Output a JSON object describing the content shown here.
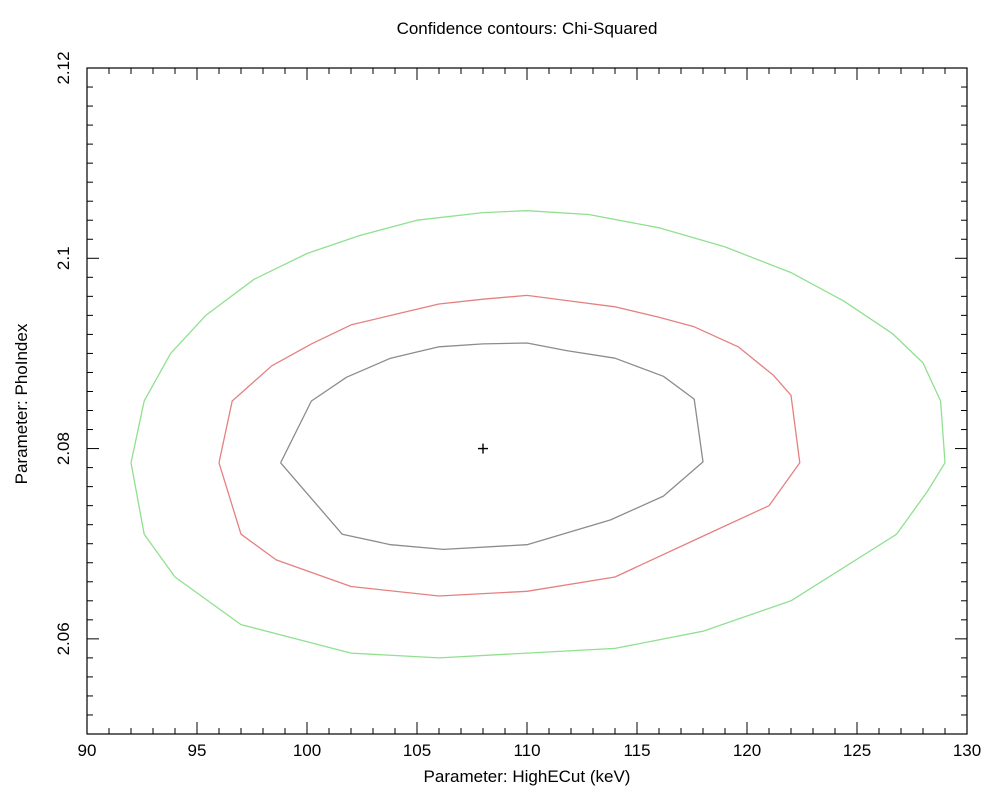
{
  "chart_data": {
    "type": "line",
    "title": "Confidence contours: Chi-Squared",
    "xlabel": "Parameter: HighECut (keV)",
    "ylabel": "Parameter: PhoIndex",
    "xlim": [
      90,
      130
    ],
    "ylim": [
      2.05,
      2.12
    ],
    "x_ticks": [
      90,
      95,
      100,
      105,
      110,
      115,
      120,
      125,
      130
    ],
    "x_tick_labels": [
      "90",
      "95",
      "100",
      "105",
      "110",
      "115",
      "120",
      "125",
      "130"
    ],
    "y_ticks": [
      2.06,
      2.08,
      2.1,
      2.12
    ],
    "y_tick_labels": [
      "2.06",
      "2.08",
      "2.1",
      "2.12"
    ],
    "x_minor_step": 1,
    "y_minor_step": 0.002,
    "grid": false,
    "legend": false,
    "best_fit": {
      "x": 108,
      "y": 2.08
    },
    "series": [
      {
        "color": "#8c8c8c",
        "points": [
          [
            98.8,
            2.0785
          ],
          [
            100.2,
            2.085
          ],
          [
            101.8,
            2.0875
          ],
          [
            103.8,
            2.0895
          ],
          [
            106.0,
            2.0907
          ],
          [
            108.0,
            2.091
          ],
          [
            110.0,
            2.0911
          ],
          [
            111.8,
            2.0903
          ],
          [
            114.0,
            2.0895
          ],
          [
            116.2,
            2.0876
          ],
          [
            117.6,
            2.0852
          ],
          [
            118.0,
            2.0786
          ],
          [
            116.2,
            2.075
          ],
          [
            113.8,
            2.0725
          ],
          [
            110.0,
            2.0699
          ],
          [
            106.2,
            2.0694
          ],
          [
            103.8,
            2.0699
          ],
          [
            101.6,
            2.071
          ],
          [
            98.8,
            2.0785
          ]
        ]
      },
      {
        "color": "#e58080",
        "points": [
          [
            96.0,
            2.0785
          ],
          [
            96.6,
            2.085
          ],
          [
            98.4,
            2.0887
          ],
          [
            100.2,
            2.091
          ],
          [
            102.0,
            2.093
          ],
          [
            104.0,
            2.0941
          ],
          [
            106.0,
            2.0952
          ],
          [
            108.0,
            2.0957
          ],
          [
            110.0,
            2.0961
          ],
          [
            112.0,
            2.0955
          ],
          [
            114.0,
            2.0949
          ],
          [
            116.0,
            2.0938
          ],
          [
            117.6,
            2.0928
          ],
          [
            119.6,
            2.0907
          ],
          [
            121.2,
            2.0877
          ],
          [
            122.0,
            2.0856
          ],
          [
            122.4,
            2.0785
          ],
          [
            121.0,
            2.074
          ],
          [
            118.0,
            2.0708
          ],
          [
            114.0,
            2.0665
          ],
          [
            110.0,
            2.065
          ],
          [
            106.0,
            2.0645
          ],
          [
            102.0,
            2.0655
          ],
          [
            98.6,
            2.0683
          ],
          [
            97.0,
            2.071
          ],
          [
            96.0,
            2.0785
          ]
        ]
      },
      {
        "color": "#90e090",
        "points": [
          [
            92.0,
            2.0785
          ],
          [
            92.6,
            2.085
          ],
          [
            93.8,
            2.09
          ],
          [
            95.4,
            2.094
          ],
          [
            97.6,
            2.0978
          ],
          [
            100.0,
            2.1005
          ],
          [
            102.4,
            2.1024
          ],
          [
            105.0,
            2.104
          ],
          [
            108.0,
            2.1048
          ],
          [
            110.0,
            2.105
          ],
          [
            112.8,
            2.1046
          ],
          [
            116.0,
            2.1032
          ],
          [
            119.0,
            2.1012
          ],
          [
            122.0,
            2.0985
          ],
          [
            124.4,
            2.0955
          ],
          [
            126.6,
            2.0921
          ],
          [
            128.0,
            2.089
          ],
          [
            128.8,
            2.085
          ],
          [
            129.0,
            2.0785
          ],
          [
            128.2,
            2.0755
          ],
          [
            126.8,
            2.071
          ],
          [
            122.0,
            2.064
          ],
          [
            118.0,
            2.0608
          ],
          [
            114.0,
            2.059
          ],
          [
            110.0,
            2.0585
          ],
          [
            106.0,
            2.058
          ],
          [
            102.0,
            2.0585
          ],
          [
            97.0,
            2.0615
          ],
          [
            94.0,
            2.0665
          ],
          [
            92.6,
            2.071
          ],
          [
            92.0,
            2.0785
          ]
        ]
      }
    ]
  }
}
